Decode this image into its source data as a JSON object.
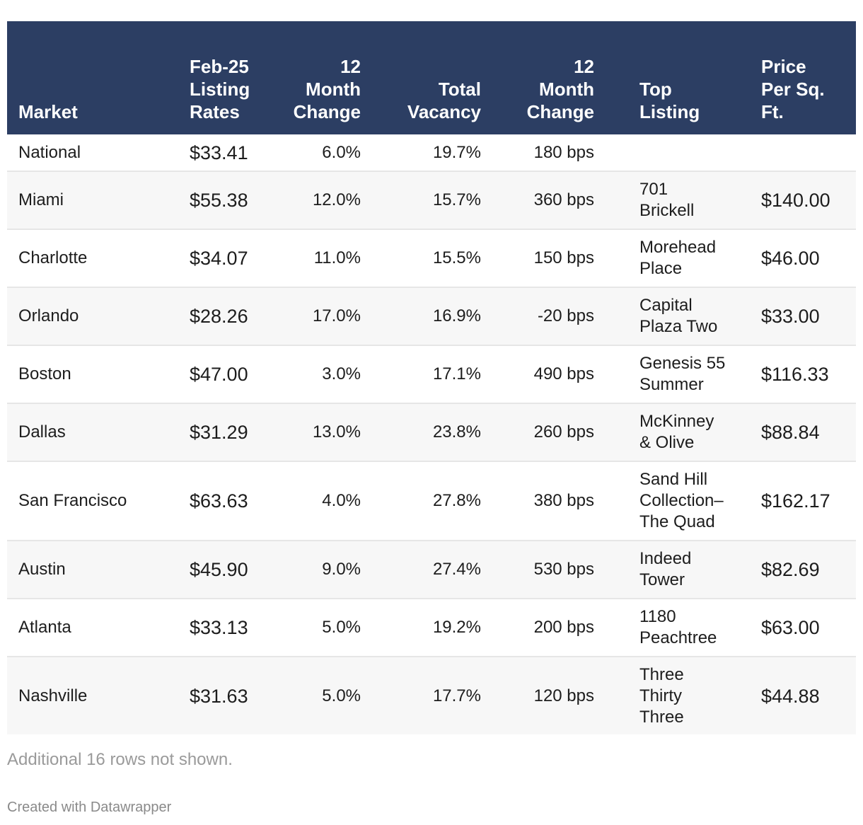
{
  "chart_data": {
    "type": "table",
    "columns": [
      "Market",
      "Feb-25 Listing Rates",
      "12 Month Change",
      "Total Vacancy",
      "12 Month Change",
      "Top Listing",
      "Price Per Sq. Ft."
    ],
    "rows": [
      [
        "National",
        "$33.41",
        "6.0%",
        "19.7%",
        "180 bps",
        "",
        ""
      ],
      [
        "Miami",
        "$55.38",
        "12.0%",
        "15.7%",
        "360 bps",
        "701 Brickell",
        "$140.00"
      ],
      [
        "Charlotte",
        "$34.07",
        "11.0%",
        "15.5%",
        "150 bps",
        "Morehead Place",
        "$46.00"
      ],
      [
        "Orlando",
        "$28.26",
        "17.0%",
        "16.9%",
        "-20 bps",
        "Capital Plaza Two",
        "$33.00"
      ],
      [
        "Boston",
        "$47.00",
        "3.0%",
        "17.1%",
        "490 bps",
        "Genesis 55 Summer",
        "$116.33"
      ],
      [
        "Dallas",
        "$31.29",
        "13.0%",
        "23.8%",
        "260 bps",
        "McKinney & Olive",
        "$88.84"
      ],
      [
        "San Francisco",
        "$63.63",
        "4.0%",
        "27.8%",
        "380 bps",
        "Sand Hill Collection–The Quad",
        "$162.17"
      ],
      [
        "Austin",
        "$45.90",
        "9.0%",
        "27.4%",
        "530 bps",
        "Indeed Tower",
        "$82.69"
      ],
      [
        "Atlanta",
        "$33.13",
        "5.0%",
        "19.2%",
        "200 bps",
        "1180 Peachtree",
        "$63.00"
      ],
      [
        "Nashville",
        "$31.63",
        "5.0%",
        "17.7%",
        "120 bps",
        "Three Thirty Three",
        "$44.88"
      ]
    ]
  },
  "note": "Additional 16 rows not shown.",
  "credit": "Created with Datawrapper",
  "colors": {
    "header_bg": "#2c3e63",
    "header_text": "#ffffff",
    "stripe": "#f7f7f7"
  }
}
